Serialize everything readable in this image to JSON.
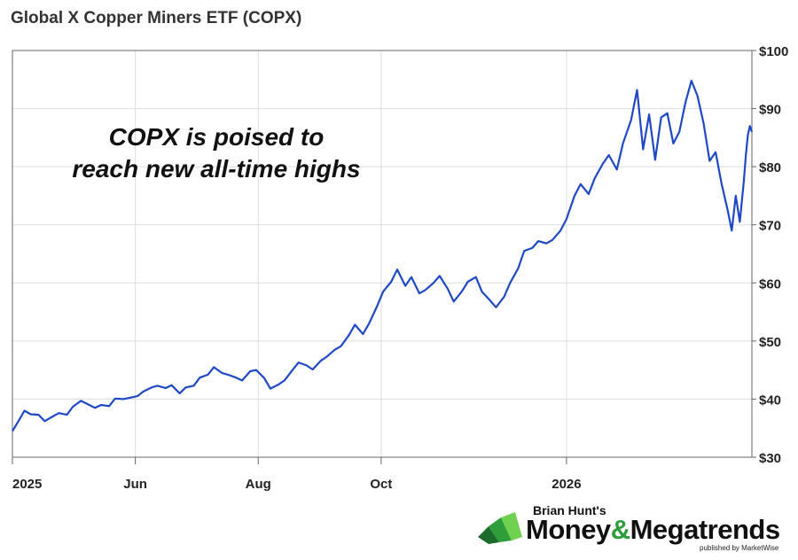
{
  "header": {
    "title": "Global X Copper Miners ETF (COPX)"
  },
  "annotation": {
    "line1": "COPX is poised to",
    "line2": "reach new all-time highs"
  },
  "brand": {
    "author": "Brian Hunt's",
    "name_part1": "Money",
    "amp": "&",
    "name_part2": "Megatrends",
    "published_by": "published by MarketWise",
    "accent_color": "#2e9e3a"
  },
  "chart_data": {
    "type": "line",
    "title": "Global X Copper Miners ETF (COPX)",
    "xlabel": "",
    "ylabel": "",
    "x_ticks": [
      {
        "label": "2025",
        "date": "2025-04-01"
      },
      {
        "label": "Jun",
        "date": "2025-06-01"
      },
      {
        "label": "Aug",
        "date": "2025-08-01"
      },
      {
        "label": "Oct",
        "date": "2025-10-01"
      },
      {
        "label": "2026",
        "date": "2026-01-01"
      }
    ],
    "x_range": [
      "2025-04-01",
      "2026-04-03"
    ],
    "y_ticks": [
      "$30",
      "$40",
      "$50",
      "$60",
      "$70",
      "$80",
      "$90",
      "$100"
    ],
    "y_tick_values": [
      30,
      40,
      50,
      60,
      70,
      80,
      90,
      100
    ],
    "ylim": [
      30,
      100
    ],
    "y_axis_position": "right",
    "grid": true,
    "line_color": "#1f49c4",
    "series": [
      {
        "values": [
          [
            "2025-04-01",
            34.5
          ],
          [
            "2025-04-04",
            36.2
          ],
          [
            "2025-04-07",
            38.0
          ],
          [
            "2025-04-10",
            37.4
          ],
          [
            "2025-04-14",
            37.3
          ],
          [
            "2025-04-17",
            36.2
          ],
          [
            "2025-04-21",
            37.0
          ],
          [
            "2025-04-24",
            37.6
          ],
          [
            "2025-04-28",
            37.3
          ],
          [
            "2025-05-01",
            38.7
          ],
          [
            "2025-05-05",
            39.7
          ],
          [
            "2025-05-08",
            39.2
          ],
          [
            "2025-05-12",
            38.5
          ],
          [
            "2025-05-15",
            39.0
          ],
          [
            "2025-05-19",
            38.8
          ],
          [
            "2025-05-22",
            40.1
          ],
          [
            "2025-05-26",
            40.0
          ],
          [
            "2025-05-29",
            40.2
          ],
          [
            "2025-06-02",
            40.5
          ],
          [
            "2025-06-05",
            41.3
          ],
          [
            "2025-06-09",
            42.0
          ],
          [
            "2025-06-12",
            42.3
          ],
          [
            "2025-06-16",
            41.9
          ],
          [
            "2025-06-19",
            42.4
          ],
          [
            "2025-06-23",
            41.0
          ],
          [
            "2025-06-26",
            42.0
          ],
          [
            "2025-06-30",
            42.3
          ],
          [
            "2025-07-03",
            43.7
          ],
          [
            "2025-07-07",
            44.2
          ],
          [
            "2025-07-10",
            45.5
          ],
          [
            "2025-07-14",
            44.5
          ],
          [
            "2025-07-17",
            44.2
          ],
          [
            "2025-07-21",
            43.7
          ],
          [
            "2025-07-24",
            43.2
          ],
          [
            "2025-07-28",
            44.8
          ],
          [
            "2025-07-31",
            45.0
          ],
          [
            "2025-08-04",
            43.6
          ],
          [
            "2025-08-07",
            41.8
          ],
          [
            "2025-08-11",
            42.5
          ],
          [
            "2025-08-14",
            43.2
          ],
          [
            "2025-08-18",
            45.0
          ],
          [
            "2025-08-21",
            46.3
          ],
          [
            "2025-08-25",
            45.8
          ],
          [
            "2025-08-28",
            45.1
          ],
          [
            "2025-09-01",
            46.6
          ],
          [
            "2025-09-04",
            47.3
          ],
          [
            "2025-09-08",
            48.5
          ],
          [
            "2025-09-11",
            49.1
          ],
          [
            "2025-09-15",
            51.0
          ],
          [
            "2025-09-18",
            52.8
          ],
          [
            "2025-09-22",
            51.2
          ],
          [
            "2025-09-25",
            53.0
          ],
          [
            "2025-09-29",
            56.0
          ],
          [
            "2025-10-02",
            58.5
          ],
          [
            "2025-10-06",
            60.2
          ],
          [
            "2025-10-09",
            62.3
          ],
          [
            "2025-10-13",
            59.5
          ],
          [
            "2025-10-16",
            61.0
          ],
          [
            "2025-10-20",
            58.2
          ],
          [
            "2025-10-23",
            58.8
          ],
          [
            "2025-10-27",
            60.0
          ],
          [
            "2025-10-30",
            61.2
          ],
          [
            "2025-11-03",
            59.0
          ],
          [
            "2025-11-06",
            56.8
          ],
          [
            "2025-11-10",
            58.5
          ],
          [
            "2025-11-13",
            60.2
          ],
          [
            "2025-11-17",
            61.0
          ],
          [
            "2025-11-20",
            58.5
          ],
          [
            "2025-11-24",
            57.0
          ],
          [
            "2025-11-27",
            55.8
          ],
          [
            "2025-12-01",
            57.6
          ],
          [
            "2025-12-04",
            60.0
          ],
          [
            "2025-12-08",
            62.5
          ],
          [
            "2025-12-11",
            65.5
          ],
          [
            "2025-12-15",
            66.0
          ],
          [
            "2025-12-18",
            67.2
          ],
          [
            "2025-12-22",
            66.8
          ],
          [
            "2025-12-25",
            67.4
          ],
          [
            "2025-12-29",
            69.0
          ],
          [
            "2026-01-01",
            71.0
          ],
          [
            "2026-01-05",
            75.0
          ],
          [
            "2026-01-08",
            77.0
          ],
          [
            "2026-01-12",
            75.3
          ],
          [
            "2026-01-15",
            78.0
          ],
          [
            "2026-01-19",
            80.5
          ],
          [
            "2026-01-22",
            82.0
          ],
          [
            "2026-01-26",
            79.5
          ],
          [
            "2026-01-29",
            84.0
          ],
          [
            "2026-02-02",
            88.0
          ],
          [
            "2026-02-05",
            93.2
          ],
          [
            "2026-02-08",
            83.0
          ],
          [
            "2026-02-11",
            89.0
          ],
          [
            "2026-02-14",
            81.2
          ],
          [
            "2026-02-17",
            88.5
          ],
          [
            "2026-02-20",
            89.2
          ],
          [
            "2026-02-23",
            84.0
          ],
          [
            "2026-02-26",
            86.0
          ],
          [
            "2026-03-01",
            91.0
          ],
          [
            "2026-03-04",
            94.8
          ],
          [
            "2026-03-07",
            92.2
          ],
          [
            "2026-03-10",
            87.5
          ],
          [
            "2026-03-13",
            81.0
          ],
          [
            "2026-03-16",
            82.5
          ],
          [
            "2026-03-19",
            77.0
          ],
          [
            "2026-03-22",
            72.5
          ],
          [
            "2026-03-24",
            69.0
          ],
          [
            "2026-03-26",
            75.0
          ],
          [
            "2026-03-28",
            70.5
          ],
          [
            "2026-03-30",
            77.5
          ],
          [
            "2026-03-31",
            82.0
          ],
          [
            "2026-04-01",
            85.5
          ],
          [
            "2026-04-02",
            87.0
          ],
          [
            "2026-04-03",
            86.0
          ]
        ]
      }
    ]
  }
}
